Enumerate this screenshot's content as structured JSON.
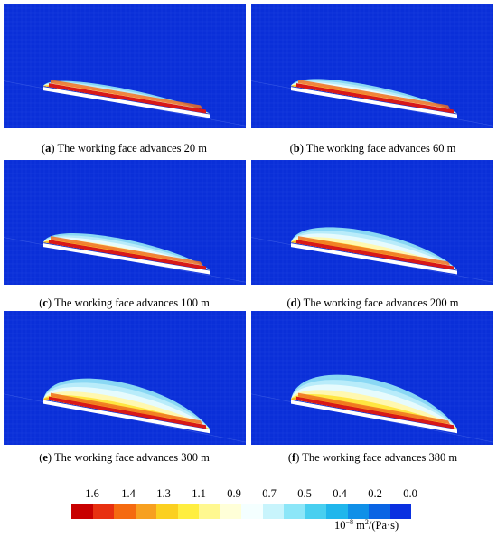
{
  "panels": [
    {
      "letter": "a",
      "caption": " The working face advances 20 m",
      "advance": 20
    },
    {
      "letter": "b",
      "caption": " The working face advances 60 m",
      "advance": 60
    },
    {
      "letter": "c",
      "caption": " The working face advances 100 m",
      "advance": 100
    },
    {
      "letter": "d",
      "caption": " The working face advances 200 m",
      "advance": 200
    },
    {
      "letter": "e",
      "caption": " The working face advances 300 m",
      "advance": 300
    },
    {
      "letter": "f",
      "caption": " The working face advances 380 m",
      "advance": 380
    }
  ],
  "colorbar": {
    "ticks": [
      "1.6",
      "1.4",
      "1.3",
      "1.1",
      "0.9",
      "0.7",
      "0.5",
      "0.4",
      "0.2",
      "0.0"
    ],
    "colors": [
      "#c80000",
      "#e83010",
      "#f56a10",
      "#f7a020",
      "#fbd020",
      "#ffee40",
      "#fff890",
      "#ffffd8",
      "#f4ffff",
      "#c8f4fc",
      "#8ce6f8",
      "#48cff0",
      "#20b6ec",
      "#1090e8",
      "#0a64e4",
      "#0a30e0"
    ],
    "unit_base": "10",
    "unit_exp": "−8",
    "unit_m": " m",
    "unit_m_exp": "2",
    "unit_rest": "/(Pa·s)"
  }
}
